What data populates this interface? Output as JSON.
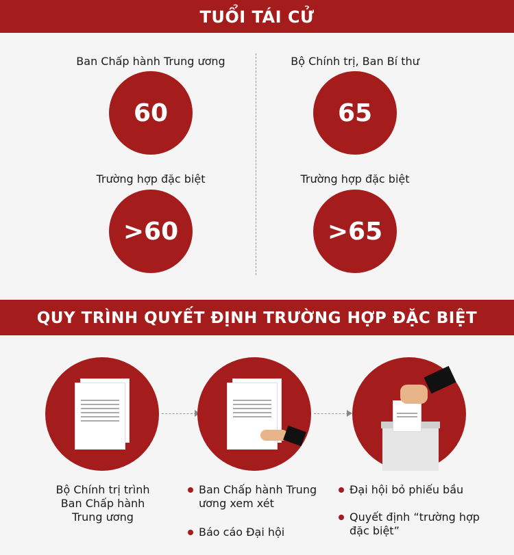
{
  "section1": {
    "title": "TUỔI TÁI CỬ",
    "left": {
      "label": "Ban Chấp hành Trung ương",
      "value": "60",
      "special_label": "Trường hợp đặc biệt",
      "special_value": ">60"
    },
    "right": {
      "label": "Bộ Chính trị, Ban Bí thư",
      "value": "65",
      "special_label": "Trường hợp đặc biệt",
      "special_value": ">65"
    }
  },
  "section2": {
    "title": "QUY TRÌNH QUYẾT ĐỊNH TRƯỜNG HỢP ĐẶC BIỆT",
    "steps": [
      {
        "icon": "document-icon",
        "text": [
          "Bộ Chính trị trình",
          "Ban Chấp hành",
          "Trung ương"
        ]
      },
      {
        "icon": "document-review-icon",
        "bullets": [
          "Ban Chấp hành Trung ương xem xét",
          "Báo cáo Đại hội"
        ]
      },
      {
        "icon": "ballot-box-icon",
        "bullets": [
          "Đại hội bỏ phiếu bầu",
          "Quyết định “trường hợp đặc biệt”"
        ]
      }
    ]
  },
  "colors": {
    "accent": "#a51c1c",
    "background": "#f5f5f5"
  }
}
